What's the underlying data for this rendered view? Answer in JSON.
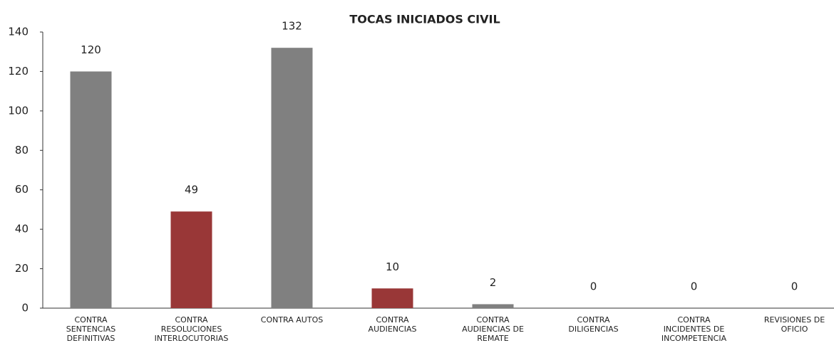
{
  "chart_data": {
    "type": "bar",
    "title": "TOCAS INICIADOS CIVIL",
    "categories": [
      "CONTRA SENTENCIAS DEFINITIVAS",
      "CONTRA RESOLUCIONES INTERLOCUTORIAS",
      "CONTRA AUTOS",
      "CONTRA AUDIENCIAS",
      "CONTRA AUDIENCIAS DE REMATE",
      "CONTRA DILIGENCIAS",
      "CONTRA INCIDENTES DE INCOMPETENCIA",
      "REVISIONES DE OFICIO"
    ],
    "values": [
      120,
      49,
      132,
      10,
      2,
      0,
      0,
      0
    ],
    "colors": [
      "#808080",
      "#993737",
      "#808080",
      "#993737",
      "#808080",
      "#808080",
      "#808080",
      "#808080"
    ],
    "ylim": [
      0,
      140
    ],
    "yticks": [
      0,
      20,
      40,
      60,
      80,
      100,
      120,
      140
    ],
    "grid": false
  }
}
